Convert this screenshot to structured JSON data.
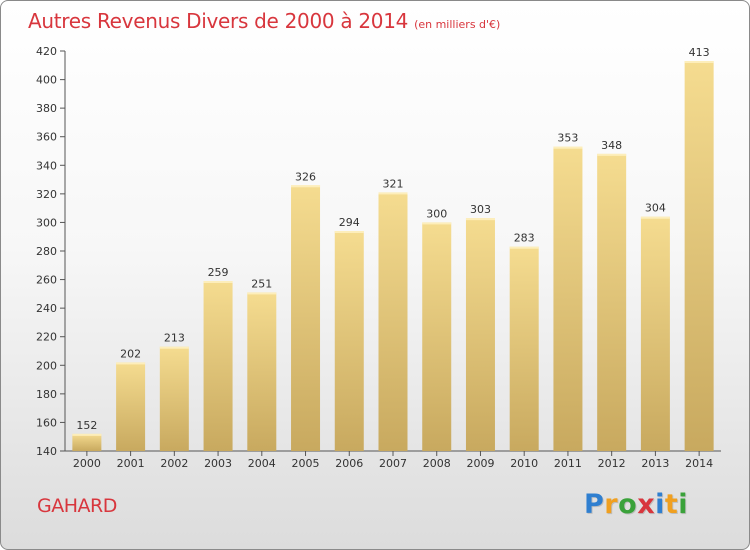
{
  "header": {
    "title": "Autres Revenus Divers de 2000 à 2014",
    "unit": "(en milliers d'€)"
  },
  "footer": {
    "place": "GAHARD",
    "logo": "Proxiti"
  },
  "colors": {
    "title": "#d8363d",
    "bar_light": "#f5dc90",
    "bar_dark": "#c8a95f"
  },
  "chart_data": {
    "type": "bar",
    "title": "Autres Revenus Divers de 2000 à 2014",
    "xlabel": "",
    "ylabel": "",
    "ylim": [
      140,
      420
    ],
    "yticks": [
      140,
      160,
      180,
      200,
      220,
      240,
      260,
      280,
      300,
      320,
      340,
      360,
      380,
      400,
      420
    ],
    "grid": false,
    "categories": [
      "2000",
      "2001",
      "2002",
      "2003",
      "2004",
      "2005",
      "2006",
      "2007",
      "2008",
      "2009",
      "2010",
      "2011",
      "2012",
      "2013",
      "2014"
    ],
    "values": [
      152,
      202,
      213,
      259,
      251,
      326,
      294,
      321,
      300,
      303,
      283,
      353,
      348,
      304,
      413
    ]
  }
}
